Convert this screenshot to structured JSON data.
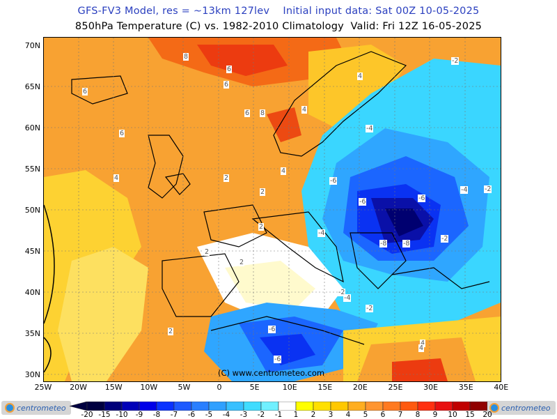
{
  "header": {
    "line1": "GFS-FV3 Model, res = ~13km 127lev    Initial input data: Sat 00Z 10-05-2025",
    "line2": "850hPa Temperature (C) vs. 1982-2010 Climatology  Valid: Fri 12Z 16-05-2025"
  },
  "map": {
    "lat_labels": [
      "70N",
      "65N",
      "60N",
      "55N",
      "50N",
      "45N",
      "40N",
      "35N",
      "30N"
    ],
    "lon_labels": [
      "25W",
      "20W",
      "15W",
      "10W",
      "5W",
      "0",
      "5E",
      "10E",
      "15E",
      "20E",
      "25E",
      "30E",
      "35E",
      "40E"
    ],
    "copyright": "(C) www.centrometeo.com",
    "contour_labels": [
      "8",
      "6",
      "6",
      "6",
      "6",
      "8",
      "6",
      "4",
      "4",
      "4",
      "2",
      "2",
      "2",
      "2",
      "2",
      "4",
      "-4",
      "-6",
      "-6",
      "-8",
      "-6",
      "-8",
      "-4",
      "-2",
      "-4",
      "-6",
      "-6",
      "-4",
      "-2",
      "-2",
      "-2",
      "4",
      "4",
      "2",
      "-2"
    ]
  },
  "colorbar": {
    "labels": [
      "-20",
      "-15",
      "-10",
      "-9",
      "-8",
      "-7",
      "-6",
      "-5",
      "-4",
      "-3",
      "-2",
      "-1",
      "1",
      "2",
      "3",
      "4",
      "5",
      "6",
      "7",
      "8",
      "9",
      "10",
      "15",
      "20"
    ],
    "colors": [
      "#000040",
      "#00007a",
      "#0000b8",
      "#0000e8",
      "#0a32ff",
      "#1e5aff",
      "#2a7fff",
      "#30a0ff",
      "#38c0ff",
      "#40dcff",
      "#70f0ff",
      "#ffffff",
      "#ffff00",
      "#ffe000",
      "#ffc800",
      "#ffae20",
      "#ff9530",
      "#ff7a20",
      "#ff5a10",
      "#ff3010",
      "#e81010",
      "#c00000",
      "#900000"
    ]
  },
  "logos": {
    "left": "centrometeo",
    "right": "centrometeo"
  }
}
